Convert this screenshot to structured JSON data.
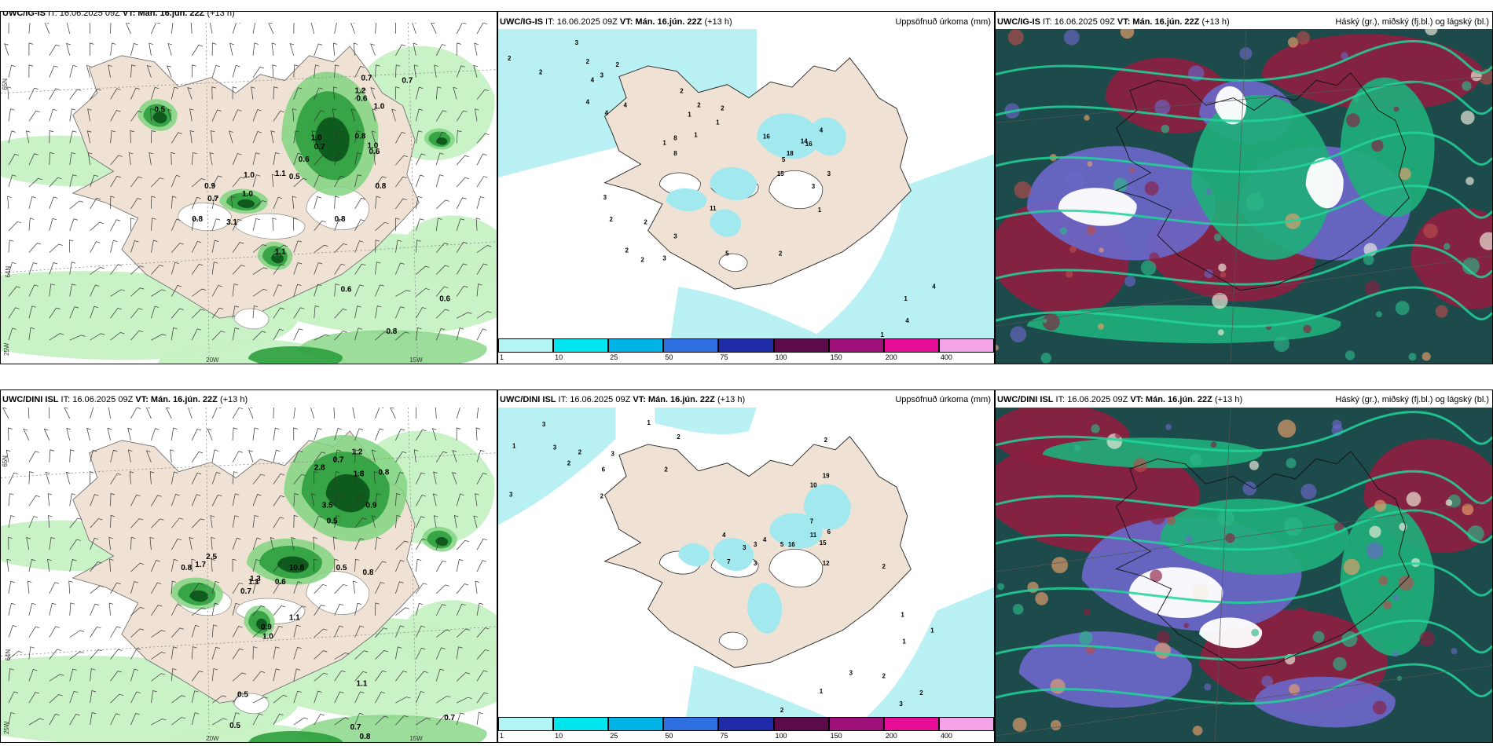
{
  "rows": [
    {
      "wind_panel": {
        "model": "UWC/IG-IS",
        "header_tail": " IT: 16.06.2025 09Z ",
        "vt": "VT: Mán. 16.jún. 22Z",
        "extra": " (+13 h)",
        "lat_top": "65N",
        "lat_bottom": "64N",
        "lon_left": "25W",
        "lon_mid": "20W",
        "lon_right": "15W",
        "values": [
          "0.7",
          "0.7",
          "1.2",
          "0.5",
          "0.6",
          "1.0",
          "1.0",
          "0.8",
          "0.7",
          "0.6",
          "1.0",
          "0.6",
          "1.0",
          "1.1",
          "0.8",
          "0.5",
          "0.9",
          "1.0",
          "0.7",
          "0.8",
          "3.1",
          "0.8",
          "0.6",
          "1.1",
          "0.6",
          "0.8"
        ]
      },
      "precip_panel": {
        "model": "UWC/IG-IS",
        "header_tail": " IT: 16.06.2025 09Z ",
        "vt": "VT: Mán. 16.jún. 22Z",
        "extra": " (+13 h)",
        "title_right": "Uppsöfnuð úrkoma (mm)",
        "values": [
          "2",
          "2",
          "3",
          "2",
          "2",
          "2",
          "2",
          "2",
          "4",
          "3",
          "4",
          "4",
          "4",
          "1",
          "2",
          "1",
          "1",
          "1",
          "3",
          "8",
          "16",
          "5",
          "18",
          "14",
          "8",
          "15",
          "16",
          "4",
          "3",
          "3",
          "2",
          "2",
          "3",
          "2",
          "3",
          "11",
          "5",
          "2",
          "1",
          "1",
          "4",
          "4",
          "1"
        ]
      },
      "cloud_panel": {
        "model": "UWC/IG-IS",
        "header_tail": " IT: 16.06.2025 09Z ",
        "vt": "VT: Mán. 16.jún. 22Z",
        "extra": " (+13 h)",
        "title_right": "Háský (gr.), miðský (fj.bl.) og lágský (bl.)"
      }
    },
    {
      "wind_panel": {
        "model": "UWC/DINI ISL",
        "header_tail": " IT: 16.06.2025 09Z ",
        "vt": "VT: Mán. 16.jún. 22Z",
        "extra": " (+13 h)",
        "lat_top": "65N",
        "lat_bottom": "64N",
        "lon_left": "25W",
        "lon_mid": "20W",
        "lon_right": "15W",
        "values": [
          "0.7",
          "1.2",
          "2.8",
          "1.8",
          "0.8",
          "3.5",
          "0.9",
          "0.5",
          "0.5",
          "0.8",
          "2.5",
          "1.7",
          "0.8",
          "1.3",
          "1.1",
          "10.8",
          "0.6",
          "0.7",
          "0.9",
          "1.1",
          "1.0",
          "1.1",
          "0.5",
          "0.7",
          "0.5",
          "0.7",
          "0.8"
        ]
      },
      "precip_panel": {
        "model": "UWC/DINI ISL",
        "header_tail": " IT: 16.06.2025 09Z ",
        "vt": "VT: Mán. 16.jún. 22Z",
        "extra": " (+13 h)",
        "title_right": "Uppsöfnuð úrkoma (mm)",
        "values": [
          "3",
          "1",
          "3",
          "3",
          "2",
          "2",
          "6",
          "3",
          "2",
          "1",
          "2",
          "19",
          "10",
          "15",
          "11",
          "7",
          "6",
          "2",
          "4",
          "3",
          "4",
          "5",
          "3",
          "7",
          "3",
          "12",
          "16",
          "2",
          "2",
          "1",
          "1",
          "1",
          "3",
          "2",
          "2",
          "2",
          "1",
          "3"
        ]
      },
      "cloud_panel": {
        "model": "UWC/DINI ISL",
        "header_tail": " IT: 16.06.2025 09Z ",
        "vt": "VT: Mán. 16.jún. 22Z",
        "extra": " (+13 h)",
        "title_right": "Háský (gr.), miðský (fj.bl.) og lágský (bl.)"
      }
    }
  ],
  "colorbar": {
    "ticks": [
      "1",
      "10",
      "25",
      "50",
      "75",
      "100",
      "150",
      "200",
      "400"
    ],
    "colors": [
      "#b3f5f5",
      "#00e5ee",
      "#00b3e6",
      "#2d6fe0",
      "#1f2aa8",
      "#5c0a4a",
      "#a0107a",
      "#e60c96",
      "#f5a3e8"
    ]
  },
  "colors": {
    "land": "#efe2d4",
    "precip_light": "#b8f0f4",
    "precip_mid": "#a2e8ef",
    "green_1": "#c7f1c4",
    "green_2": "#83d583",
    "green_3": "#2e9e3e",
    "green_4": "#0e5b1d",
    "cloud_high": "#8c1f40",
    "cloud_mid": "#6b67c9",
    "cloud_low": "#1fae7a",
    "cloud_deep": "#1d4a4a"
  }
}
